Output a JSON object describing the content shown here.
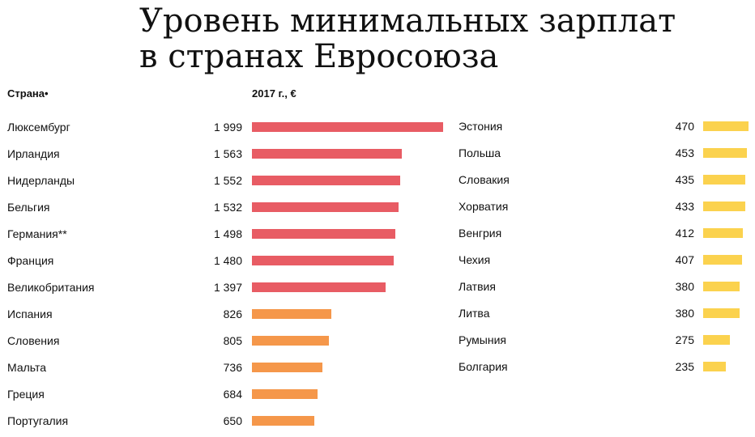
{
  "title_line1": "Уровень минимальных зарплат",
  "title_line2": "в странах Евросоюза",
  "col_country": "Страна•",
  "col_value": "2017 г., €",
  "colors": {
    "high": "#e85c64",
    "mid": "#f5974a",
    "low": "#fbd24e"
  },
  "chart_data": {
    "type": "bar",
    "title": "Уровень минимальных зарплат в странах Евросоюза",
    "value_label": "2017 г., €",
    "columns": [
      {
        "items": [
          {
            "country": "Люксембург",
            "value": 1999,
            "value_label": "1 999",
            "group": "high"
          },
          {
            "country": "Ирландия",
            "value": 1563,
            "value_label": "1 563",
            "group": "high"
          },
          {
            "country": "Нидерланды",
            "value": 1552,
            "value_label": "1 552",
            "group": "high"
          },
          {
            "country": "Бельгия",
            "value": 1532,
            "value_label": "1 532",
            "group": "high"
          },
          {
            "country": "Германия**",
            "value": 1498,
            "value_label": "1 498",
            "group": "high"
          },
          {
            "country": "Франция",
            "value": 1480,
            "value_label": "1 480",
            "group": "high"
          },
          {
            "country": "Великобритания",
            "value": 1397,
            "value_label": "1 397",
            "group": "high"
          },
          {
            "country": "Испания",
            "value": 826,
            "value_label": "826",
            "group": "mid"
          },
          {
            "country": "Словения",
            "value": 805,
            "value_label": "805",
            "group": "mid"
          },
          {
            "country": "Мальта",
            "value": 736,
            "value_label": "736",
            "group": "mid"
          },
          {
            "country": "Греция",
            "value": 684,
            "value_label": "684",
            "group": "mid"
          },
          {
            "country": "Португалия",
            "value": 650,
            "value_label": "650",
            "group": "mid"
          }
        ]
      },
      {
        "items": [
          {
            "country": "Эстония",
            "value": 470,
            "value_label": "470",
            "group": "low"
          },
          {
            "country": "Польша",
            "value": 453,
            "value_label": "453",
            "group": "low"
          },
          {
            "country": "Словакия",
            "value": 435,
            "value_label": "435",
            "group": "low"
          },
          {
            "country": "Хорватия",
            "value": 433,
            "value_label": "433",
            "group": "low"
          },
          {
            "country": "Венгрия",
            "value": 412,
            "value_label": "412",
            "group": "low"
          },
          {
            "country": "Чехия",
            "value": 407,
            "value_label": "407",
            "group": "low"
          },
          {
            "country": "Латвия",
            "value": 380,
            "value_label": "380",
            "group": "low"
          },
          {
            "country": "Литва",
            "value": 380,
            "value_label": "380",
            "group": "low"
          },
          {
            "country": "Румыния",
            "value": 275,
            "value_label": "275",
            "group": "low"
          },
          {
            "country": "Болгария",
            "value": 235,
            "value_label": "235",
            "group": "low"
          }
        ]
      }
    ]
  }
}
